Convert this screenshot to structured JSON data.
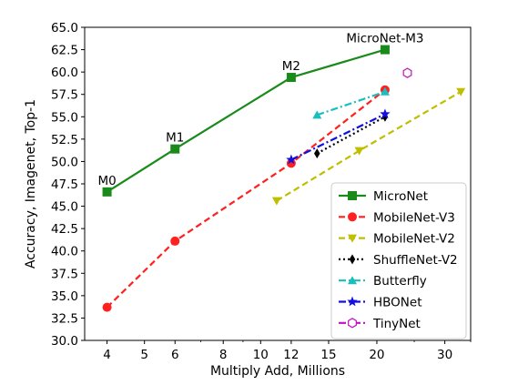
{
  "chart_data": {
    "type": "line",
    "xlabel": "Multiply Add, Millions",
    "ylabel": "Accuracy, Imagenet, Top-1",
    "xscale": "log",
    "xlim": [
      3.5,
      35
    ],
    "ylim": [
      30.0,
      65.0
    ],
    "x_ticks": [
      4,
      5,
      6,
      8,
      10,
      12,
      15,
      20,
      30
    ],
    "y_ticks": [
      "30.0",
      "32.5",
      "35.0",
      "37.5",
      "40.0",
      "42.5",
      "45.0",
      "47.5",
      "50.0",
      "52.5",
      "55.0",
      "57.5",
      "60.0",
      "62.5",
      "65.0"
    ],
    "legend_position": "lower right",
    "grid": false,
    "annotations": [
      {
        "text": "M0",
        "x": 4,
        "y": 46.6
      },
      {
        "text": "M1",
        "x": 6,
        "y": 51.4
      },
      {
        "text": "M2",
        "x": 12,
        "y": 59.4
      },
      {
        "text": "MicroNet-M3",
        "x": 21,
        "y": 62.5
      }
    ],
    "series": [
      {
        "name": "MicroNet",
        "color": "#1a8a1a",
        "linestyle": "solid",
        "marker": "square",
        "points": [
          [
            4,
            46.6
          ],
          [
            6,
            51.4
          ],
          [
            12,
            59.4
          ],
          [
            21,
            62.5
          ]
        ]
      },
      {
        "name": "MobileNet-V3",
        "color": "#ff2020",
        "linestyle": "dashed",
        "marker": "circle",
        "points": [
          [
            4,
            33.7
          ],
          [
            6,
            41.1
          ],
          [
            12,
            49.8
          ],
          [
            21,
            58.0
          ]
        ]
      },
      {
        "name": "MobileNet-V2",
        "color": "#bfbf00",
        "linestyle": "dashed",
        "marker": "triangle-down",
        "points": [
          [
            11,
            45.6
          ],
          [
            18,
            51.2
          ],
          [
            33,
            57.8
          ]
        ]
      },
      {
        "name": "ShuffleNet-V2",
        "color": "#000000",
        "linestyle": "dotted",
        "marker": "diamond",
        "points": [
          [
            14,
            50.9
          ],
          [
            21,
            55.0
          ]
        ]
      },
      {
        "name": "Butterfly",
        "color": "#17bfbf",
        "linestyle": "dashdot",
        "marker": "triangle-up",
        "points": [
          [
            14,
            55.2
          ],
          [
            21,
            57.8
          ]
        ]
      },
      {
        "name": "HBONet",
        "color": "#1010e0",
        "linestyle": "dashdot",
        "marker": "star",
        "points": [
          [
            12,
            50.2
          ],
          [
            21,
            55.3
          ]
        ]
      },
      {
        "name": "TinyNet",
        "color": "#c010c0",
        "linestyle": "dashdot",
        "marker": "hexagon-open",
        "points": [
          [
            24,
            59.9
          ]
        ]
      }
    ]
  }
}
